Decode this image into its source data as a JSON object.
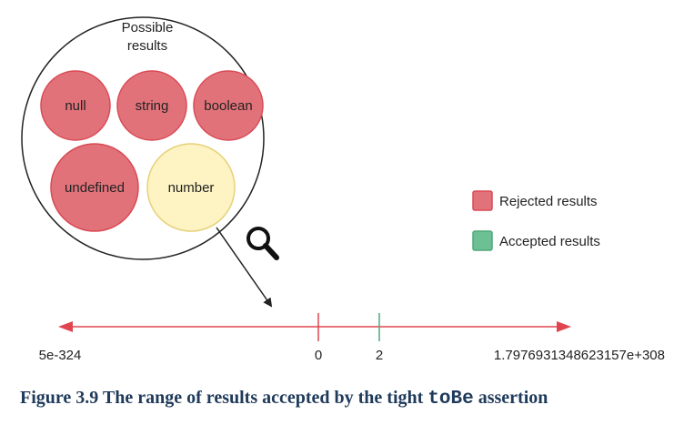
{
  "set": {
    "title_line1": "Possible",
    "title_line2": "results",
    "items": [
      {
        "label": "null",
        "status": "rejected"
      },
      {
        "label": "string",
        "status": "rejected"
      },
      {
        "label": "boolean",
        "status": "rejected"
      },
      {
        "label": "undefined",
        "status": "rejected"
      },
      {
        "label": "number",
        "status": "accepted"
      }
    ]
  },
  "legend": {
    "rejected_label": "Rejected results",
    "accepted_label": "Accepted results"
  },
  "number_line": {
    "min_label": "5e-324",
    "zero_label": "0",
    "accepted_label": "2",
    "max_label": "1.7976931348623157e+308"
  },
  "caption": {
    "prefix": "Figure 3.9 The range of results accepted by the tight ",
    "code": "toBe",
    "suffix": " assertion"
  },
  "colors": {
    "rejected_fill": "#e2727a",
    "rejected_stroke": "#d94a55",
    "accepted_fill": "#fdf3c3",
    "accepted_stroke": "#e6d27a",
    "legend_accepted": "#6dbf94",
    "axis": "#e0454f",
    "accepted_tick": "#4ea97a",
    "caption": "#1f3a5a"
  },
  "icons": [
    "magnifier-icon"
  ]
}
